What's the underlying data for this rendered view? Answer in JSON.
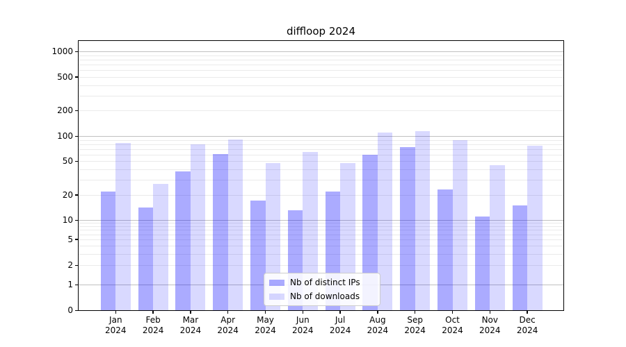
{
  "title": "diffloop 2024",
  "chart_data": {
    "type": "bar",
    "title": "diffloop 2024",
    "categories": [
      "Jan",
      "Feb",
      "Mar",
      "Apr",
      "May",
      "Jun",
      "Jul",
      "Aug",
      "Sep",
      "Oct",
      "Nov",
      "Dec"
    ],
    "category_year": "2024",
    "series": [
      {
        "name": "Nb of distinct IPs",
        "color": "rgba(0,0,255,0.33)",
        "values": [
          22,
          14,
          38,
          61,
          17,
          13,
          22,
          60,
          74,
          23,
          11,
          15
        ]
      },
      {
        "name": "Nb of downloads",
        "color": "rgba(0,0,255,0.15)",
        "values": [
          83,
          27,
          80,
          91,
          48,
          64,
          48,
          110,
          115,
          89,
          45,
          77
        ]
      }
    ],
    "yscale": "symlog",
    "y_ticks": [
      0,
      1,
      2,
      5,
      10,
      20,
      50,
      100,
      200,
      500,
      1000
    ],
    "ylim": [
      0,
      1330
    ],
    "xlabel": "",
    "ylabel": "",
    "grid": "horizontal, minor and major",
    "legend_position": "lower center"
  },
  "colors": {
    "background": "#ffffff",
    "axis": "#000000",
    "major_grid": "#c0c0c0",
    "minor_grid": "#eaeaea",
    "bar_distinct_ips": "rgba(0,0,255,0.33)",
    "bar_downloads": "rgba(0,0,255,0.15)"
  }
}
